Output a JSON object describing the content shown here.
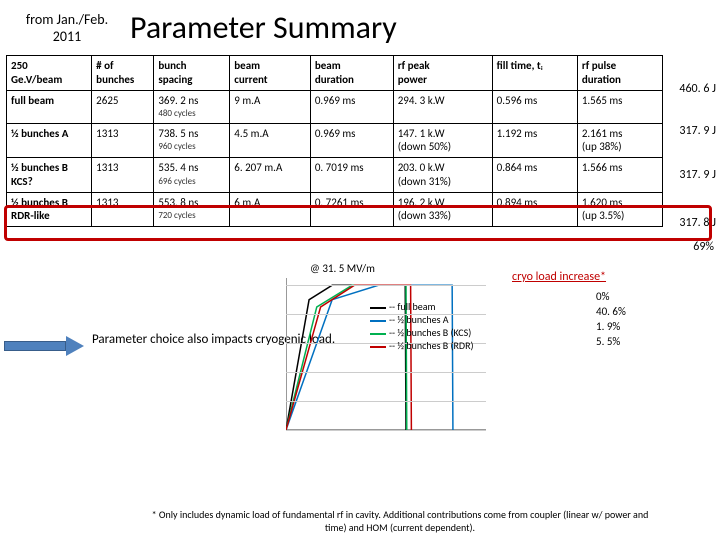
{
  "header": {
    "sub": "from Jan./Feb.\n2011",
    "title": "Parameter Summary"
  },
  "table": {
    "columns": [
      "250\nGe.V/beam",
      "# of\nbunches",
      "bunch\nspacing",
      "beam\ncurrent",
      "beam\nduration",
      "rf peak\npower",
      "fill time, tᵢ",
      "rf pulse\nduration"
    ],
    "rows": [
      {
        "cells": [
          "full beam",
          "2625",
          "369. 2 ns",
          "9 m.A",
          "0.969 ms",
          "294. 3 k.W",
          "0.596 ms",
          "1.565 ms"
        ],
        "sub": [
          "",
          "",
          "480 cycles",
          "",
          "",
          "",
          "",
          ""
        ],
        "ext": "460. 6 J"
      },
      {
        "cells": [
          "½ bunches A",
          "1313",
          "738. 5 ns",
          "4.5 m.A",
          "0.969 ms",
          "147. 1 k.W\n(down 50%)",
          "1.192 ms",
          "2.161 ms\n(up 38%)"
        ],
        "sub": [
          "",
          "",
          "960 cycles",
          "",
          "",
          "",
          "",
          ""
        ],
        "ext": "317. 9 J"
      },
      {
        "cells": [
          "½ bunches B\nKCS?",
          "1313",
          "535. 4 ns",
          "6. 207 m.A",
          "0. 7019 ms",
          "203. 0 k.W\n(down 31%)",
          "0.864 ms",
          "1.566 ms"
        ],
        "sub": [
          "",
          "",
          "696 cycles",
          "",
          "",
          "",
          "",
          ""
        ],
        "ext": "317. 9 J"
      },
      {
        "cells": [
          "½ bunches B\nRDR-like",
          "1313",
          "553. 8 ns",
          "6 m.A",
          "0. 7261 ms",
          "196. 2 k.W\n(down 33%)",
          "0.894 ms",
          "1.620 ms\n(up 3.5%)"
        ],
        "sub": [
          "",
          "",
          "720 cycles",
          "",
          "",
          "",
          "",
          ""
        ],
        "ext": "317. 8 J"
      }
    ]
  },
  "callout": "Parameter choice also\nimpacts cryogenic load.",
  "annotation_rate": "@ 31. 5 MV/m",
  "cryo": {
    "label": "cryo load\nincrease*",
    "vals": [
      "0%",
      "40. 6%",
      "1. 9%",
      "5. 5%"
    ]
  },
  "legend": [
    {
      "c": "#000000",
      "t": "full beam"
    },
    {
      "c": "#0070c0",
      "t": "½ bunches A"
    },
    {
      "c": "#00b050",
      "t": "½ bunches B (KCS)"
    },
    {
      "c": "#c00000",
      "t": "½ bunches B (RDR)"
    }
  ],
  "pct69": "69%",
  "footnote": "*  Only includes dynamic load of fundamental rf in cavity.  Additional contributions\ncome from coupler (linear w/ power and time) and HOM (current dependent).",
  "chart": {
    "y_ticks": [
      0,
      0.2,
      0.4,
      0.6,
      0.8,
      1.0
    ],
    "x_ticks": [
      0,
      0.5,
      1.0,
      1.5,
      2.0,
      2.5
    ],
    "series_colors": [
      "#000000",
      "#0070c0",
      "#00b050",
      "#c00000"
    ],
    "series": [
      [
        [
          0,
          0
        ],
        [
          0.3,
          0.9
        ],
        [
          0.6,
          1.0
        ],
        [
          1.55,
          1.0
        ],
        [
          1.56,
          0.0
        ]
      ],
      [
        [
          0,
          0
        ],
        [
          0.6,
          0.9
        ],
        [
          1.2,
          1.0
        ],
        [
          2.16,
          1.0
        ],
        [
          2.17,
          0.0
        ]
      ],
      [
        [
          0,
          0
        ],
        [
          0.4,
          0.85
        ],
        [
          0.86,
          1.0
        ],
        [
          1.56,
          1.0
        ],
        [
          1.57,
          0.0
        ]
      ],
      [
        [
          0,
          0
        ],
        [
          0.45,
          0.85
        ],
        [
          0.89,
          1.0
        ],
        [
          1.62,
          1.0
        ],
        [
          1.63,
          0.0
        ]
      ]
    ],
    "xmax": 2.6,
    "ymax": 1.05
  }
}
